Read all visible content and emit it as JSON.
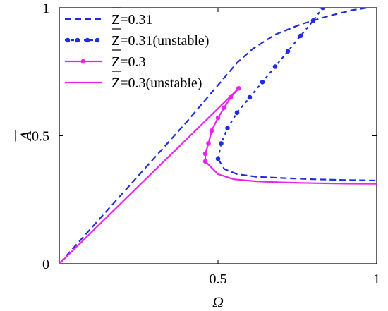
{
  "chart_data": {
    "type": "line",
    "title": "",
    "xlabel": "Ω",
    "ylabel": "A",
    "ylabel_bar": true,
    "xlim": [
      0,
      1
    ],
    "ylim": [
      0,
      1
    ],
    "xticks": [
      0.5,
      1
    ],
    "yticks": [
      0,
      0.5,
      1
    ],
    "xtick_labels": [
      "0.5",
      "1"
    ],
    "ytick_labels": [
      "0",
      "0.5",
      "1"
    ],
    "grid": false,
    "legend_position": "top-left",
    "series": [
      {
        "name": "Z=0.31",
        "color": "#1f2fd8",
        "style": "dashed",
        "marker": "none",
        "x": [
          0.0,
          0.4,
          0.56,
          0.61,
          0.68,
          0.76,
          0.84,
          0.92,
          0.97
        ],
        "y": [
          0.0,
          0.552,
          0.785,
          0.84,
          0.895,
          0.935,
          0.965,
          0.99,
          1.0
        ],
        "x2": [
          0.5,
          0.52,
          0.56,
          0.62,
          0.7,
          0.8,
          0.9,
          1.0
        ],
        "y2": [
          0.41,
          0.37,
          0.35,
          0.34,
          0.335,
          0.33,
          0.327,
          0.325
        ]
      },
      {
        "name": "Z=0.31(unstable)",
        "color": "#1f2fd8",
        "style": "dotted",
        "marker": "dot",
        "x": [
          0.5,
          0.51,
          0.53,
          0.56,
          0.6,
          0.64,
          0.68,
          0.72,
          0.76,
          0.8,
          0.83
        ],
        "y": [
          0.41,
          0.47,
          0.53,
          0.59,
          0.65,
          0.71,
          0.77,
          0.83,
          0.89,
          0.95,
          1.0
        ]
      },
      {
        "name": "Z=0.3",
        "color": "#ee22ee",
        "style": "solid",
        "marker": "dot",
        "x": [
          0.46,
          0.46,
          0.47,
          0.48,
          0.5,
          0.52,
          0.54,
          0.565
        ],
        "y": [
          0.4,
          0.43,
          0.47,
          0.52,
          0.57,
          0.61,
          0.65,
          0.685
        ]
      },
      {
        "name": "Z=0.3(unstable)",
        "color": "#ee22ee",
        "style": "solid",
        "marker": "none",
        "x": [
          0.0,
          0.2,
          0.4,
          0.565
        ],
        "y": [
          0.0,
          0.243,
          0.485,
          0.685
        ],
        "x2": [
          0.46,
          0.5,
          0.55,
          0.62,
          0.7,
          0.8,
          0.9,
          1.0
        ],
        "y2": [
          0.4,
          0.35,
          0.33,
          0.322,
          0.318,
          0.315,
          0.313,
          0.312
        ]
      }
    ]
  }
}
